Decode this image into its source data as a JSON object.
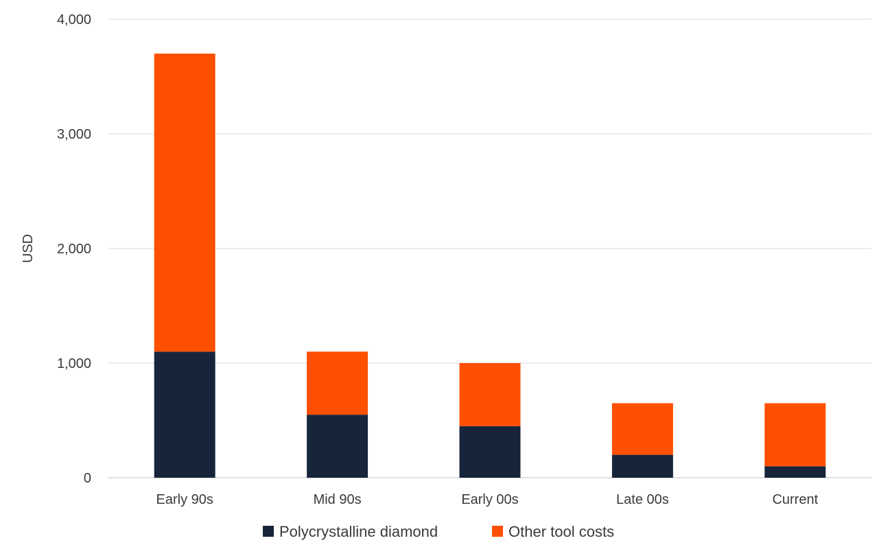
{
  "chart_data": {
    "type": "bar",
    "stacked": true,
    "title": "",
    "xlabel": "",
    "ylabel": "USD",
    "ylim": [
      0,
      4000
    ],
    "yticks": [
      0,
      1000,
      2000,
      3000,
      4000
    ],
    "ytick_labels": [
      "0",
      "1,000",
      "2,000",
      "3,000",
      "4,000"
    ],
    "grid": true,
    "legend_position": "bottom",
    "categories": [
      "Early 90s",
      "Mid 90s",
      "Early 00s",
      "Late 00s",
      "Current"
    ],
    "series": [
      {
        "name": "Polycrystalline diamond",
        "color": "#17253b",
        "values": [
          1100,
          550,
          450,
          200,
          100
        ]
      },
      {
        "name": "Other tool costs",
        "color": "#ff4f00",
        "values": [
          2600,
          550,
          550,
          450,
          550
        ]
      }
    ]
  }
}
